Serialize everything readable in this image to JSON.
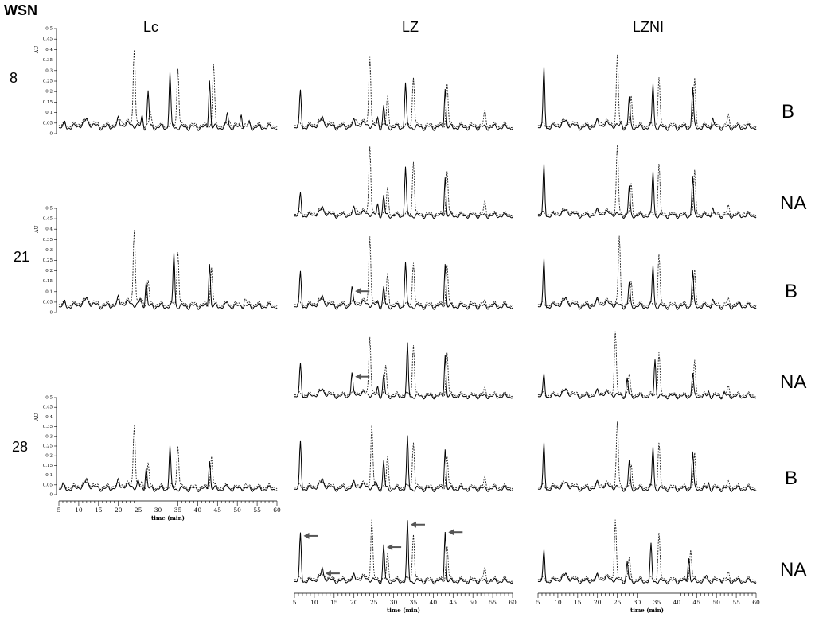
{
  "figure": {
    "corner_label": "WSN",
    "column_labels": [
      "Lc",
      "LZ",
      "LZNI"
    ],
    "row_labels": [
      "8",
      "21",
      "28"
    ],
    "treatment_labels": [
      "B",
      "NA",
      "B",
      "NA",
      "B",
      "NA"
    ]
  },
  "chart_data": {
    "type": "line",
    "xlabel": "time (min)",
    "ylabel": "AU",
    "xlim": [
      5,
      60
    ],
    "ylim": [
      0,
      0.5
    ],
    "xticks": [
      5,
      10,
      15,
      20,
      25,
      30,
      35,
      40,
      45,
      50,
      55,
      60
    ],
    "yticks": [
      0,
      0.05,
      0.1,
      0.15,
      0.2,
      0.25,
      0.3,
      0.35,
      0.4,
      0.45,
      0.5
    ],
    "series_styles": [
      "solid",
      "dashed"
    ],
    "panels": [
      {
        "column": "Lc",
        "row": "8",
        "treatment": "B",
        "solid_peaks": [
          [
            6.5,
            0.05
          ],
          [
            12,
            0.05
          ],
          [
            20,
            0.06
          ],
          [
            26,
            0.08
          ],
          [
            27.5,
            0.2
          ],
          [
            33,
            0.29
          ],
          [
            43,
            0.26
          ],
          [
            47.5,
            0.1
          ],
          [
            51,
            0.1
          ],
          [
            53,
            0.05
          ]
        ],
        "dashed_peaks": [
          [
            20.5,
            0.06
          ],
          [
            24,
            0.41
          ],
          [
            26,
            0.06
          ],
          [
            28,
            0.1
          ],
          [
            35,
            0.32
          ],
          [
            44,
            0.33
          ],
          [
            48,
            0.06
          ],
          [
            52,
            0.04
          ]
        ],
        "arrows": []
      },
      {
        "column": "LZ",
        "row": "8",
        "treatment": "B",
        "solid_peaks": [
          [
            6.5,
            0.2
          ],
          [
            12,
            0.06
          ],
          [
            20,
            0.05
          ],
          [
            26,
            0.07
          ],
          [
            27.5,
            0.13
          ],
          [
            33,
            0.24
          ],
          [
            43,
            0.22
          ],
          [
            47,
            0.03
          ]
        ],
        "dashed_peaks": [
          [
            20.5,
            0.06
          ],
          [
            24,
            0.37
          ],
          [
            26.5,
            0.05
          ],
          [
            28.5,
            0.17
          ],
          [
            35,
            0.28
          ],
          [
            43.5,
            0.24
          ],
          [
            53,
            0.1
          ]
        ],
        "arrows": []
      },
      {
        "column": "LZNI",
        "row": "8",
        "treatment": "B",
        "solid_peaks": [
          [
            6.5,
            0.31
          ],
          [
            12,
            0.04
          ],
          [
            20,
            0.05
          ],
          [
            26,
            0.05
          ],
          [
            28,
            0.17
          ],
          [
            34,
            0.24
          ],
          [
            44,
            0.22
          ],
          [
            49,
            0.08
          ]
        ],
        "dashed_peaks": [
          [
            20.5,
            0.05
          ],
          [
            25,
            0.36
          ],
          [
            28.5,
            0.17
          ],
          [
            35.5,
            0.27
          ],
          [
            44.5,
            0.25
          ],
          [
            53,
            0.08
          ],
          [
            57,
            0.05
          ]
        ],
        "arrows": []
      },
      {
        "column": "LZ",
        "row": "8",
        "treatment": "NA",
        "solid_peaks": [
          [
            6.5,
            0.15
          ],
          [
            12,
            0.06
          ],
          [
            20,
            0.06
          ],
          [
            26,
            0.09
          ],
          [
            27.5,
            0.14
          ],
          [
            33,
            0.3
          ],
          [
            43,
            0.25
          ]
        ],
        "dashed_peaks": [
          [
            20.5,
            0.07
          ],
          [
            24,
            0.42
          ],
          [
            28.5,
            0.18
          ],
          [
            35,
            0.34
          ],
          [
            43.5,
            0.28
          ],
          [
            53,
            0.1
          ]
        ],
        "arrows": []
      },
      {
        "column": "LZNI",
        "row": "8",
        "treatment": "NA",
        "solid_peaks": [
          [
            6.5,
            0.31
          ],
          [
            12,
            0.04
          ],
          [
            20,
            0.05
          ],
          [
            28,
            0.19
          ],
          [
            34,
            0.28
          ],
          [
            44,
            0.25
          ],
          [
            49,
            0.08
          ]
        ],
        "dashed_peaks": [
          [
            25,
            0.41
          ],
          [
            28.5,
            0.2
          ],
          [
            35.5,
            0.32
          ],
          [
            44.5,
            0.27
          ],
          [
            53,
            0.08
          ],
          [
            57,
            0.05
          ]
        ],
        "arrows": []
      },
      {
        "column": "Lc",
        "row": "21",
        "treatment": "B",
        "solid_peaks": [
          [
            6.5,
            0.05
          ],
          [
            12,
            0.05
          ],
          [
            20,
            0.06
          ],
          [
            25.5,
            0.06
          ],
          [
            27,
            0.15
          ],
          [
            34,
            0.29
          ],
          [
            43,
            0.24
          ],
          [
            47.5,
            0.05
          ],
          [
            51,
            0.04
          ]
        ],
        "dashed_peaks": [
          [
            24,
            0.4
          ],
          [
            26,
            0.06
          ],
          [
            27.5,
            0.15
          ],
          [
            35,
            0.3
          ],
          [
            43.5,
            0.22
          ],
          [
            52,
            0.06
          ]
        ],
        "arrows": []
      },
      {
        "column": "LZ",
        "row": "21",
        "treatment": "B",
        "solid_peaks": [
          [
            6.5,
            0.19
          ],
          [
            12,
            0.06
          ],
          [
            19.5,
            0.11
          ],
          [
            26,
            0.05
          ],
          [
            27.5,
            0.12
          ],
          [
            33,
            0.24
          ],
          [
            43,
            0.24
          ]
        ],
        "dashed_peaks": [
          [
            24,
            0.37
          ],
          [
            28.5,
            0.18
          ],
          [
            35,
            0.25
          ],
          [
            43.5,
            0.23
          ],
          [
            53,
            0.05
          ]
        ],
        "arrows": [
          19.5
        ]
      },
      {
        "column": "LZNI",
        "row": "21",
        "treatment": "B",
        "solid_peaks": [
          [
            6.5,
            0.25
          ],
          [
            12,
            0.05
          ],
          [
            20,
            0.05
          ],
          [
            28,
            0.14
          ],
          [
            34,
            0.23
          ],
          [
            44,
            0.2
          ],
          [
            49,
            0.07
          ],
          [
            56,
            0.05
          ]
        ],
        "dashed_peaks": [
          [
            25.5,
            0.36
          ],
          [
            28.5,
            0.14
          ],
          [
            35.5,
            0.28
          ],
          [
            44.5,
            0.19
          ],
          [
            53,
            0.06
          ]
        ],
        "arrows": []
      },
      {
        "column": "LZ",
        "row": "21",
        "treatment": "NA",
        "solid_peaks": [
          [
            6.5,
            0.21
          ],
          [
            12,
            0.05
          ],
          [
            19.5,
            0.15
          ],
          [
            26,
            0.08
          ],
          [
            27.5,
            0.15
          ],
          [
            33.5,
            0.32
          ],
          [
            43,
            0.27
          ]
        ],
        "dashed_peaks": [
          [
            24,
            0.37
          ],
          [
            28,
            0.2
          ],
          [
            35,
            0.33
          ],
          [
            43.5,
            0.28
          ],
          [
            53,
            0.07
          ]
        ],
        "arrows": [
          19.5
        ]
      },
      {
        "column": "LZNI",
        "row": "21",
        "treatment": "NA",
        "solid_peaks": [
          [
            6.5,
            0.15
          ],
          [
            12,
            0.05
          ],
          [
            20,
            0.05
          ],
          [
            27.5,
            0.13
          ],
          [
            34.5,
            0.24
          ],
          [
            44,
            0.16
          ],
          [
            48,
            0.06
          ],
          [
            52,
            0.05
          ]
        ],
        "dashed_peaks": [
          [
            24.5,
            0.39
          ],
          [
            28,
            0.15
          ],
          [
            35.5,
            0.28
          ],
          [
            44.5,
            0.22
          ],
          [
            53,
            0.08
          ]
        ],
        "arrows": []
      },
      {
        "column": "Lc",
        "row": "28",
        "treatment": "B",
        "solid_peaks": [
          [
            6,
            0.05
          ],
          [
            12,
            0.06
          ],
          [
            20,
            0.06
          ],
          [
            25,
            0.06
          ],
          [
            27,
            0.14
          ],
          [
            33,
            0.25
          ],
          [
            43,
            0.18
          ],
          [
            47.5,
            0.05
          ],
          [
            51,
            0.04
          ]
        ],
        "dashed_peaks": [
          [
            24,
            0.36
          ],
          [
            26,
            0.06
          ],
          [
            27.5,
            0.16
          ],
          [
            35,
            0.26
          ],
          [
            43.5,
            0.2
          ],
          [
            52,
            0.05
          ]
        ],
        "arrows": []
      },
      {
        "column": "LZ",
        "row": "28",
        "treatment": "B",
        "solid_peaks": [
          [
            6.5,
            0.27
          ],
          [
            12,
            0.06
          ],
          [
            20,
            0.05
          ],
          [
            25.5,
            0.06
          ],
          [
            27.5,
            0.17
          ],
          [
            33.5,
            0.29
          ],
          [
            43,
            0.24
          ]
        ],
        "dashed_peaks": [
          [
            24.5,
            0.35
          ],
          [
            28.5,
            0.19
          ],
          [
            35,
            0.28
          ],
          [
            43.5,
            0.2
          ],
          [
            53,
            0.08
          ]
        ],
        "arrows": []
      },
      {
        "column": "LZNI",
        "row": "28",
        "treatment": "B",
        "solid_peaks": [
          [
            6.5,
            0.26
          ],
          [
            12,
            0.04
          ],
          [
            20,
            0.05
          ],
          [
            28,
            0.17
          ],
          [
            34,
            0.25
          ],
          [
            44,
            0.22
          ],
          [
            48,
            0.06
          ]
        ],
        "dashed_peaks": [
          [
            25,
            0.36
          ],
          [
            28.5,
            0.15
          ],
          [
            35.5,
            0.27
          ],
          [
            44.5,
            0.2
          ],
          [
            53,
            0.06
          ]
        ],
        "arrows": []
      },
      {
        "column": "LZ",
        "row": "28",
        "treatment": "NA",
        "solid_peaks": [
          [
            6.5,
            0.28
          ],
          [
            12,
            0.08
          ],
          [
            20,
            0.05
          ],
          [
            27.5,
            0.22
          ],
          [
            33.5,
            0.34
          ],
          [
            43,
            0.3
          ]
        ],
        "dashed_peaks": [
          [
            24.5,
            0.35
          ],
          [
            28.5,
            0.17
          ],
          [
            35,
            0.29
          ],
          [
            43.5,
            0.22
          ],
          [
            53,
            0.09
          ]
        ],
        "arrows": [
          6.5,
          12,
          27.5,
          33.5,
          43
        ]
      },
      {
        "column": "LZNI",
        "row": "28",
        "treatment": "NA",
        "solid_peaks": [
          [
            6.5,
            0.19
          ],
          [
            12,
            0.05
          ],
          [
            20,
            0.05
          ],
          [
            27.5,
            0.13
          ],
          [
            33.5,
            0.22
          ],
          [
            43,
            0.16
          ],
          [
            47.5,
            0.06
          ],
          [
            51,
            0.05
          ]
        ],
        "dashed_peaks": [
          [
            24.5,
            0.35
          ],
          [
            28,
            0.15
          ],
          [
            35.5,
            0.29
          ],
          [
            43.5,
            0.2
          ],
          [
            53,
            0.07
          ]
        ],
        "arrows": []
      }
    ]
  }
}
